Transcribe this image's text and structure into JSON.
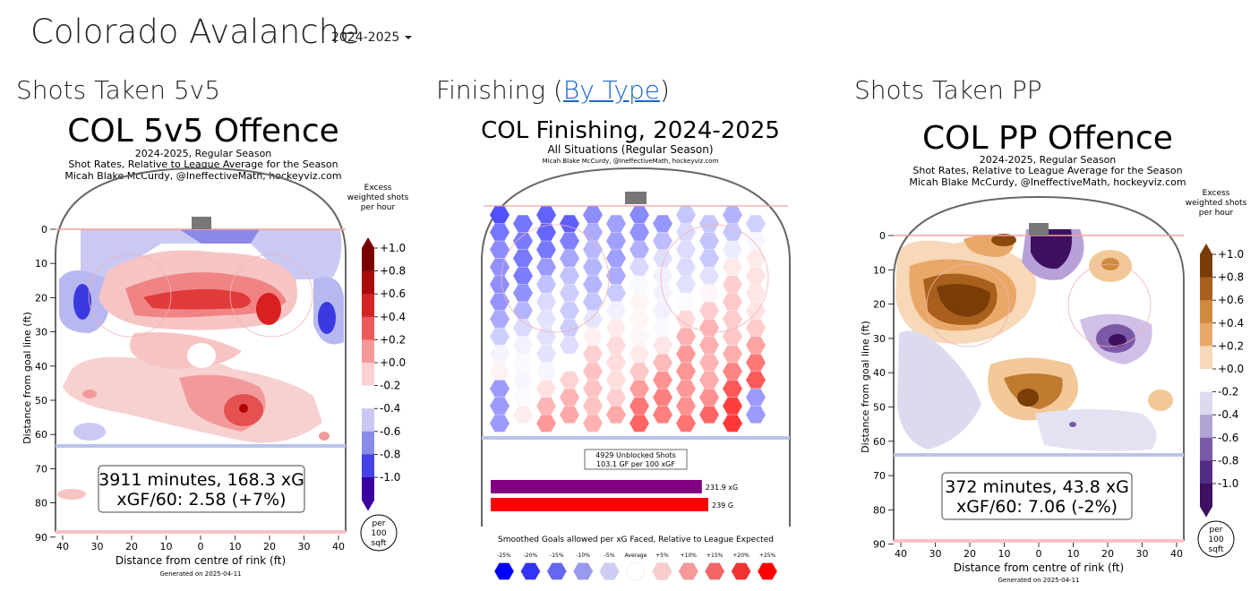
{
  "header": {
    "team": "Colorado Avalanche",
    "season_select": "2024-2025"
  },
  "sections": {
    "s1": {
      "title": "Shots Taken 5v5"
    },
    "s2": {
      "pre": "Finishing (",
      "link": "By Type",
      "post": ")"
    },
    "s3": {
      "title": "Shots Taken PP"
    }
  },
  "colors": {
    "red": "#e8242c",
    "blue": "#3b3bea",
    "brown": "#8a4a0e",
    "purple": "#3d1060"
  },
  "chart_data": [
    {
      "type": "heatmap",
      "title": "COL 5v5 Offence",
      "subtitle_lines": [
        "2024-2025, Regular Season",
        "Shot Rates, Relative to League Average for the Season",
        "Micah Blake McCurdy, @IneffectiveMath, hockeyviz.com"
      ],
      "xlabel": "Distance from centre of rink (ft)",
      "ylabel": "Distance from goal line (ft)",
      "x_ticks": [
        "40",
        "30",
        "20",
        "10",
        "0",
        "10",
        "20",
        "30",
        "40"
      ],
      "y_ticks": [
        "0",
        "10",
        "20",
        "30",
        "40",
        "50",
        "60",
        "70",
        "80",
        "90"
      ],
      "colorbar": {
        "title_lines": [
          "Excess",
          "weighted shots",
          "per hour"
        ],
        "ticks": [
          "+1.0",
          "+0.8",
          "+0.6",
          "+0.4",
          "+0.2",
          "+0.0",
          "-0.2",
          "-0.4",
          "-0.6",
          "-0.8",
          "-1.0"
        ]
      },
      "summary_lines": [
        "3911 minutes, 168.3 xG",
        "xGF/60: 2.58 (+7%)"
      ],
      "footnote": "Generated on 2025-04-11",
      "area_badge": [
        "per",
        "100",
        "sqft"
      ]
    },
    {
      "type": "heatmap",
      "title": "COL Finishing, 2024-2025",
      "subtitle_lines": [
        "All Situations (Regular Season)",
        "Micah Blake McCurdy, @IneffectiveMath, hockeyviz.com"
      ],
      "shots_lines": [
        "4929 Unblocked Shots",
        "103.1 GF per 100 xGF"
      ],
      "bars": [
        {
          "label": "231.9 xG",
          "value": 231.9,
          "color": "#800080"
        },
        {
          "label": "239 G",
          "value": 239,
          "color": "#ff0000"
        }
      ],
      "legend_title": "Smoothed Goals allowed per xG Faced, Relative to League Expected",
      "legend_items": [
        "-25%",
        "-20%",
        "-15%",
        "-10%",
        "-5%",
        "Average",
        "+5%",
        "+10%",
        "+15%",
        "+20%",
        "+25%"
      ]
    },
    {
      "type": "heatmap",
      "title": "COL PP Offence",
      "subtitle_lines": [
        "2024-2025, Regular Season",
        "Shot Rates, Relative to League Average for the Season",
        "Micah Blake McCurdy, @IneffectiveMath, hockeyviz.com"
      ],
      "xlabel": "Distance from centre of rink (ft)",
      "ylabel": "Distance from goal line (ft)",
      "x_ticks": [
        "40",
        "30",
        "20",
        "10",
        "0",
        "10",
        "20",
        "30",
        "40"
      ],
      "y_ticks": [
        "0",
        "10",
        "20",
        "30",
        "40",
        "50",
        "60",
        "70",
        "80",
        "90"
      ],
      "colorbar": {
        "title_lines": [
          "Excess",
          "weighted shots",
          "per hour"
        ],
        "ticks": [
          "+1.0",
          "+0.8",
          "+0.6",
          "+0.4",
          "+0.2",
          "+0.0",
          "-0.2",
          "-0.4",
          "-0.6",
          "-0.8",
          "-1.0"
        ]
      },
      "summary_lines": [
        "372 minutes, 43.8 xG",
        "xGF/60: 7.06 (-2%)"
      ],
      "footnote": "Generated on 2025-04-11",
      "area_badge": [
        "per",
        "100",
        "sqft"
      ]
    }
  ]
}
